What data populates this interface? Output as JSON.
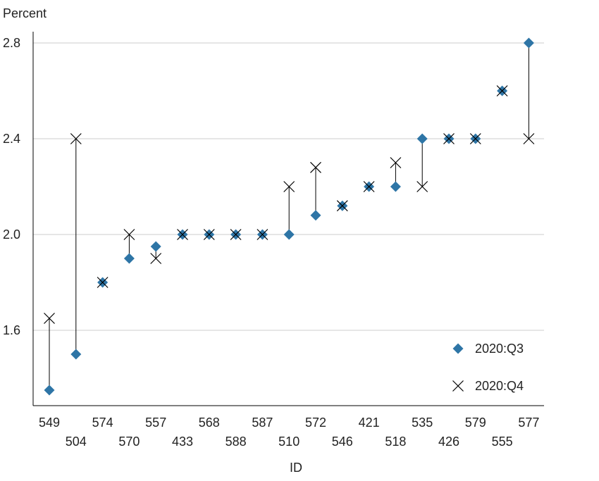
{
  "chart_data": {
    "type": "scatter",
    "ylabel": "Percent",
    "xlabel": "ID",
    "ylim": [
      1.3,
      2.8
    ],
    "yticks": [
      "1.6",
      "2.0",
      "2.4",
      "2.8"
    ],
    "grid": "horizontal",
    "legend_position": "bottom-right",
    "categories": [
      "549",
      "504",
      "574",
      "570",
      "557",
      "433",
      "568",
      "588",
      "587",
      "510",
      "572",
      "546",
      "421",
      "518",
      "535",
      "426",
      "579",
      "555",
      "577"
    ],
    "series": [
      {
        "name": "2020:Q3",
        "marker": "diamond",
        "color": "#2e75a6",
        "values": [
          1.35,
          1.5,
          1.8,
          1.9,
          1.95,
          2.0,
          2.0,
          2.0,
          2.0,
          2.0,
          2.08,
          2.12,
          2.2,
          2.2,
          2.4,
          2.4,
          2.4,
          2.6,
          2.8
        ]
      },
      {
        "name": "2020:Q4",
        "marker": "x",
        "color": "#000000",
        "values": [
          1.65,
          2.4,
          1.8,
          2.0,
          1.9,
          2.0,
          2.0,
          2.0,
          2.0,
          2.2,
          2.28,
          2.12,
          2.2,
          2.3,
          2.2,
          2.4,
          2.4,
          2.6,
          2.4
        ]
      }
    ]
  }
}
